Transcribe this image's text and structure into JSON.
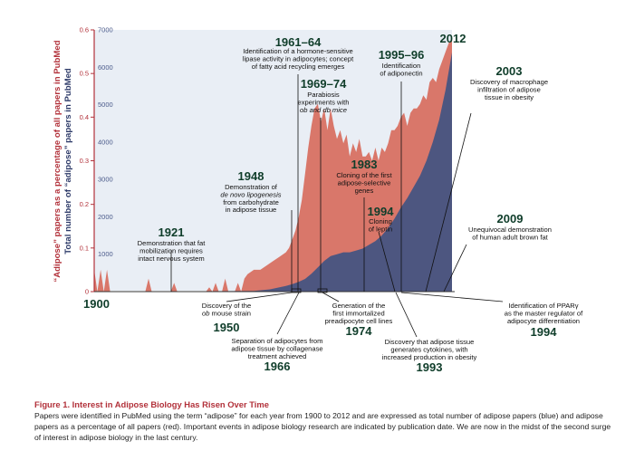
{
  "figure": {
    "x_start_label": "1900"
  },
  "caption": {
    "title": "Figure 1. Interest in Adipose Biology Has Risen Over Time",
    "body": "Papers were identified in PubMed using the term “adipose” for each year from 1900 to 2012 and are expressed as total number of adipose papers (blue) and adipose papers as a percentage of all papers (red). Important events in adipose biology research are indicated by publication date. We are now in the midst of the second surge of interest in adipose biology in the last century."
  },
  "chart_data": {
    "type": "area",
    "x_range": [
      1900,
      2012
    ],
    "y_left": {
      "label": "“Adipose” papers as a percentage of all papers in PubMed",
      "range": [
        0,
        0.6
      ],
      "ticks": [
        "0",
        "0.1",
        "0.2",
        "0.3",
        "0.4",
        "0.5",
        "0.6"
      ]
    },
    "y_right": {
      "label": "Total number of “adipose” papers in PubMed",
      "range": [
        0,
        7000
      ],
      "ticks": [
        "0",
        "1000",
        "2000",
        "3000",
        "4000",
        "5000",
        "6000",
        "7000"
      ]
    },
    "colors": {
      "percent": "#d9776a",
      "total": "#4d5680",
      "axis": "#b2313a",
      "year": "#0f3d2a",
      "plot_bg": "#e9eef5"
    },
    "series": [
      {
        "key": "percent",
        "x": [
          1900,
          1901,
          1902,
          1903,
          1904,
          1905,
          1906,
          1908,
          1910,
          1916,
          1917,
          1918,
          1919,
          1920,
          1924,
          1925,
          1926,
          1927,
          1935,
          1936,
          1937,
          1938,
          1939,
          1940,
          1941,
          1942,
          1943,
          1944,
          1945,
          1946,
          1947,
          1948,
          1950,
          1952,
          1954,
          1956,
          1958,
          1960,
          1961,
          1962,
          1963,
          1964,
          1965,
          1966,
          1967,
          1968,
          1969,
          1970,
          1971,
          1972,
          1973,
          1974,
          1975,
          1976,
          1977,
          1978,
          1979,
          1980,
          1981,
          1982,
          1983,
          1984,
          1985,
          1986,
          1987,
          1988,
          1989,
          1990,
          1991,
          1992,
          1993,
          1994,
          1995,
          1996,
          1997,
          1998,
          1999,
          2000,
          2001,
          2002,
          2003,
          2004,
          2005,
          2006,
          2007,
          2008,
          2009,
          2010,
          2011,
          2012
        ],
        "y": [
          0.05,
          0.0,
          0.05,
          0.0,
          0.05,
          0.0,
          0.0,
          0.0,
          0.0,
          0.0,
          0.03,
          0.0,
          0.0,
          0.0,
          0.0,
          0.02,
          0.0,
          0.0,
          0.0,
          0.01,
          0.0,
          0.02,
          0.0,
          0.0,
          0.03,
          0.0,
          0.0,
          0.0,
          0.02,
          0.0,
          0.03,
          0.04,
          0.05,
          0.05,
          0.06,
          0.07,
          0.08,
          0.09,
          0.1,
          0.12,
          0.14,
          0.17,
          0.21,
          0.27,
          0.33,
          0.38,
          0.42,
          0.43,
          0.39,
          0.42,
          0.37,
          0.42,
          0.38,
          0.35,
          0.37,
          0.34,
          0.36,
          0.31,
          0.34,
          0.32,
          0.35,
          0.31,
          0.31,
          0.32,
          0.3,
          0.33,
          0.3,
          0.33,
          0.32,
          0.34,
          0.37,
          0.37,
          0.38,
          0.4,
          0.41,
          0.38,
          0.41,
          0.42,
          0.42,
          0.43,
          0.45,
          0.44,
          0.48,
          0.49,
          0.48,
          0.51,
          0.53,
          0.55,
          0.57,
          0.58
        ]
      },
      {
        "key": "total",
        "x": [
          1900,
          1950,
          1955,
          1960,
          1962,
          1964,
          1966,
          1968,
          1970,
          1972,
          1974,
          1976,
          1978,
          1980,
          1982,
          1984,
          1986,
          1988,
          1990,
          1992,
          1994,
          1996,
          1998,
          2000,
          2002,
          2004,
          2006,
          2008,
          2010,
          2012
        ],
        "y": [
          0,
          20,
          60,
          150,
          200,
          260,
          340,
          480,
          650,
          820,
          950,
          1000,
          1050,
          1050,
          1100,
          1150,
          1250,
          1350,
          1500,
          1700,
          1950,
          2250,
          2500,
          2800,
          3100,
          3500,
          4000,
          4600,
          5400,
          6400
        ]
      }
    ]
  },
  "events_above": [
    {
      "year": "1921",
      "text": [
        "Demonstration that fat",
        "mobilization requires",
        "intact nervous system"
      ]
    },
    {
      "year": "1948",
      "text": [
        "Demonstration of",
        "de novo lipogenesis",
        "from carbohydrate",
        "in adipose tissue"
      ]
    },
    {
      "year": "1961–64",
      "text": [
        "Identification of a hormone-sensitive",
        "lipase activity in adipocytes; concept",
        "of fatty acid recycling emerges"
      ]
    },
    {
      "year": "1969–74",
      "text": [
        "Parabiosis",
        "experiments with",
        "ob and db mice"
      ]
    },
    {
      "year": "1983",
      "text": [
        "Cloning of the first",
        "adipose-selective",
        "genes"
      ]
    },
    {
      "year": "1994",
      "text": [
        "Cloning",
        "of leptin"
      ]
    },
    {
      "year": "1995–96",
      "text": [
        "Identification",
        "of adiponectin"
      ]
    },
    {
      "year": "2012",
      "text": []
    },
    {
      "year": "2003",
      "text": [
        "Discovery of macrophage",
        "infiltration of adipose",
        "tissue in obesity"
      ]
    },
    {
      "year": "2009",
      "text": [
        "Unequivocal demonstration",
        "of human adult brown fat"
      ]
    }
  ],
  "events_below": [
    {
      "year": "1950",
      "text": [
        "Discovery of the",
        "ob mouse strain"
      ]
    },
    {
      "year": "1966",
      "text": [
        "Separation of adipocytes from",
        "adipose tissue by collagenase",
        "treatment achieved"
      ]
    },
    {
      "year": "1974",
      "text": [
        "Generation of the",
        "first immortalized",
        "preadipocyte cell lines"
      ]
    },
    {
      "year": "1993",
      "text": [
        "Discovery that adipose tissue",
        "generates cytokines, with",
        "increased production in obesity"
      ]
    },
    {
      "year": "1994",
      "text": [
        "Identification of PPARγ",
        "as the master regulator of",
        "adipocyte differentiation"
      ]
    }
  ]
}
